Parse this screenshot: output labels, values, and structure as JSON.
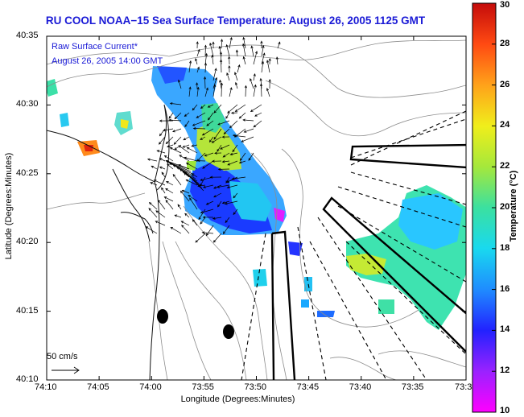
{
  "title": "RU COOL  NOAA−15  Sea Surface Temperature:  August 26, 2005 1125 GMT",
  "legend": {
    "line1": "Raw Surface Current*",
    "line2": "August 26, 2005 14:00 GMT"
  },
  "axes": {
    "xlabel": "Longitude (Degrees:Minutes)",
    "ylabel": "Latitude (Degrees:Minutes)",
    "x_ticks": [
      "74:10",
      "74:05",
      "74:00",
      "73:55",
      "73:50",
      "73:45",
      "73:40",
      "73:35",
      "73:3"
    ],
    "y_ticks": [
      "40:35",
      "40:30",
      "40:25",
      "40:20",
      "40:15",
      "40:10"
    ]
  },
  "colorbar": {
    "label": "Temperature (°C)",
    "ticks": [
      "30",
      "28",
      "26",
      "24",
      "22",
      "20",
      "18",
      "16",
      "14",
      "12",
      "10"
    ],
    "min": 10,
    "max": 30
  },
  "scale_arrow": {
    "label": "50 cm/s"
  },
  "colors": {
    "title": "#1a1ad6",
    "text": "#000000",
    "contour": "#8c8c8c"
  }
}
